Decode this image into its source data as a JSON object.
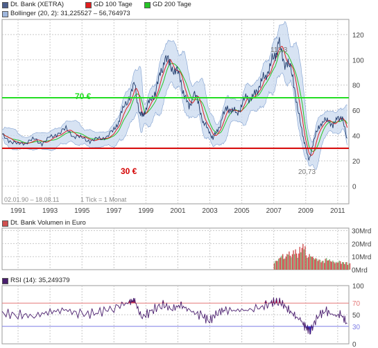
{
  "colors": {
    "price_line": "#1f3a6b",
    "gd100": "#e01e1e",
    "gd200": "#25c425",
    "bollinger_fill": "#c9d9ef",
    "bollinger_edge": "#7f9fd0",
    "level70": "#22dd22",
    "level30": "#d40000",
    "volume_bar": "#77b877",
    "volume_bar_red": "#d05050",
    "rsi_line": "#4a1e6e",
    "rsi_upper": "#e47878",
    "rsi_lower": "#7f7fe6",
    "rsi_ob_fill": "#e0203f",
    "rsi_os_fill": "#3a2fc8",
    "grid": "#c8c8c8",
    "axis_text": "#444444"
  },
  "legend": {
    "main": [
      {
        "label": "Dt. Bank (XETRA)",
        "swatch": "#4d5f8c"
      },
      {
        "label": "GD 100 Tage",
        "swatch": "#e01e1e"
      },
      {
        "label": "GD 200 Tage",
        "swatch": "#25c425"
      }
    ],
    "bollinger": {
      "label": "Bollinger (20, 2): 31,225527 – 56,764973",
      "swatch": "#9fb7dd"
    },
    "volume": {
      "label": "Dt. Bank Volumen in Euro",
      "swatch": "#d05050"
    },
    "rsi": {
      "label": "RSI (14): 35,249379",
      "swatch": "#4a1e6e"
    }
  },
  "main_chart": {
    "annotations": {
      "level70_label": "70 €",
      "level30_label": "30 €",
      "high_label": "113,3",
      "low_label": "20,73",
      "date_range": "02.01.90 – 18.08.11",
      "tick_info": "1 Tick = 1 Monat"
    },
    "y_ticks": [
      "120",
      "100",
      "80",
      "60",
      "40",
      "20",
      "0"
    ],
    "x_ticks": [
      "1991",
      "1993",
      "1995",
      "1997",
      "1999",
      "2001",
      "2003",
      "2005",
      "2007",
      "2009",
      "2011"
    ]
  },
  "volume_chart": {
    "y_ticks": [
      "30Mrd",
      "20Mrd",
      "10Mrd",
      "0Mrd"
    ]
  },
  "rsi_chart": {
    "y_ticks": [
      "100",
      "70",
      "50",
      "30",
      "0"
    ]
  },
  "chart_data": [
    {
      "type": "line",
      "title": "Dt. Bank (XETRA)",
      "x_range": [
        "1990-01",
        "2011-08"
      ],
      "ylim": [
        0,
        130
      ],
      "y_ticks": [
        0,
        20,
        40,
        60,
        80,
        100,
        120
      ],
      "x_ticks": [
        1991,
        1993,
        1995,
        1997,
        1999,
        2001,
        2003,
        2005,
        2007,
        2009,
        2011
      ],
      "grid": true,
      "legend_position": "top-left",
      "horizontal_lines": [
        {
          "value": 70,
          "label": "70 €"
        },
        {
          "value": 30,
          "label": "30 €"
        }
      ],
      "annotations": [
        {
          "label": "113,3",
          "x": 2007.3,
          "y": 113.3
        },
        {
          "label": "20,73",
          "x": 2009.2,
          "y": 20.73
        }
      ],
      "series": [
        {
          "name": "Dt. Bank (XETRA)",
          "x": [
            1990.0,
            1990.5,
            1991.0,
            1991.5,
            1992.0,
            1992.5,
            1993.0,
            1993.5,
            1994.0,
            1994.5,
            1995.0,
            1995.5,
            1996.0,
            1996.5,
            1997.0,
            1997.3,
            1997.6,
            1998.0,
            1998.3,
            1998.6,
            1998.8,
            1999.0,
            1999.3,
            1999.6,
            1999.9,
            2000.2,
            2000.5,
            2000.8,
            2001.1,
            2001.4,
            2001.7,
            2002.0,
            2002.3,
            2002.6,
            2002.9,
            2003.2,
            2003.5,
            2003.8,
            2004.1,
            2004.4,
            2004.7,
            2005.0,
            2005.3,
            2005.6,
            2005.9,
            2006.2,
            2006.5,
            2006.8,
            2007.1,
            2007.3,
            2007.6,
            2007.9,
            2008.2,
            2008.5,
            2008.8,
            2009.0,
            2009.2,
            2009.5,
            2009.8,
            2010.1,
            2010.4,
            2010.7,
            2011.0,
            2011.3,
            2011.6
          ],
          "y": [
            40,
            36,
            33,
            35,
            37,
            34,
            38,
            42,
            45,
            40,
            38,
            36,
            37,
            39,
            44,
            52,
            62,
            72,
            80,
            58,
            55,
            62,
            68,
            75,
            88,
            102,
            96,
            92,
            88,
            72,
            62,
            74,
            65,
            50,
            45,
            38,
            44,
            55,
            62,
            60,
            58,
            64,
            72,
            68,
            75,
            82,
            88,
            96,
            104,
            113.3,
            100,
            96,
            88,
            60,
            42,
            30,
            20.73,
            35,
            48,
            50,
            54,
            46,
            56,
            52,
            38
          ]
        }
      ]
    },
    {
      "type": "bar",
      "title": "Dt. Bank Volumen in Euro",
      "ylabel": "Mrd",
      "ylim": [
        0,
        30
      ],
      "y_ticks": [
        0,
        10,
        20,
        30
      ],
      "x_range": [
        "1990-01",
        "2011-08"
      ],
      "note": "Volume bars visible only from ~2007 onward",
      "series": [
        {
          "name": "Dt. Bank Volumen in Euro",
          "x": [
            2007.0,
            2007.2,
            2007.4,
            2007.6,
            2007.8,
            2008.0,
            2008.2,
            2008.4,
            2008.6,
            2008.8,
            2009.0,
            2009.2,
            2009.4,
            2009.6,
            2009.8,
            2010.0,
            2010.2,
            2010.4,
            2010.6,
            2010.8,
            2011.0,
            2011.2,
            2011.4,
            2011.6
          ],
          "y": [
            7,
            9,
            12,
            10,
            14,
            12,
            16,
            13,
            18,
            20,
            11,
            12,
            10,
            9,
            8,
            7,
            9,
            8,
            7,
            6,
            7,
            6,
            6,
            5
          ]
        }
      ]
    },
    {
      "type": "line",
      "title": "RSI (14)",
      "ylim": [
        0,
        100
      ],
      "y_ticks": [
        0,
        30,
        50,
        70,
        100
      ],
      "reference_lines": [
        70,
        30
      ],
      "x_range": [
        "1990-01",
        "2011-08"
      ],
      "series": [
        {
          "name": "RSI (14)",
          "x": [
            1990.0,
            1991.0,
            1992.0,
            1993.0,
            1994.0,
            1995.0,
            1996.0,
            1997.0,
            1998.0,
            1998.3,
            1998.7,
            1999.3,
            2000.0,
            2000.6,
            2001.2,
            2001.8,
            2002.5,
            2003.0,
            2003.5,
            2004.0,
            2005.0,
            2006.0,
            2006.8,
            2007.3,
            2007.8,
            2008.3,
            2008.7,
            2009.0,
            2009.3,
            2009.8,
            2010.3,
            2010.8,
            2011.2,
            2011.6
          ],
          "y": [
            52,
            50,
            48,
            55,
            58,
            50,
            54,
            62,
            72,
            75,
            45,
            55,
            68,
            60,
            66,
            56,
            48,
            40,
            55,
            58,
            57,
            60,
            70,
            74,
            62,
            48,
            40,
            28,
            22,
            50,
            56,
            48,
            50,
            35.25
          ]
        }
      ]
    }
  ]
}
